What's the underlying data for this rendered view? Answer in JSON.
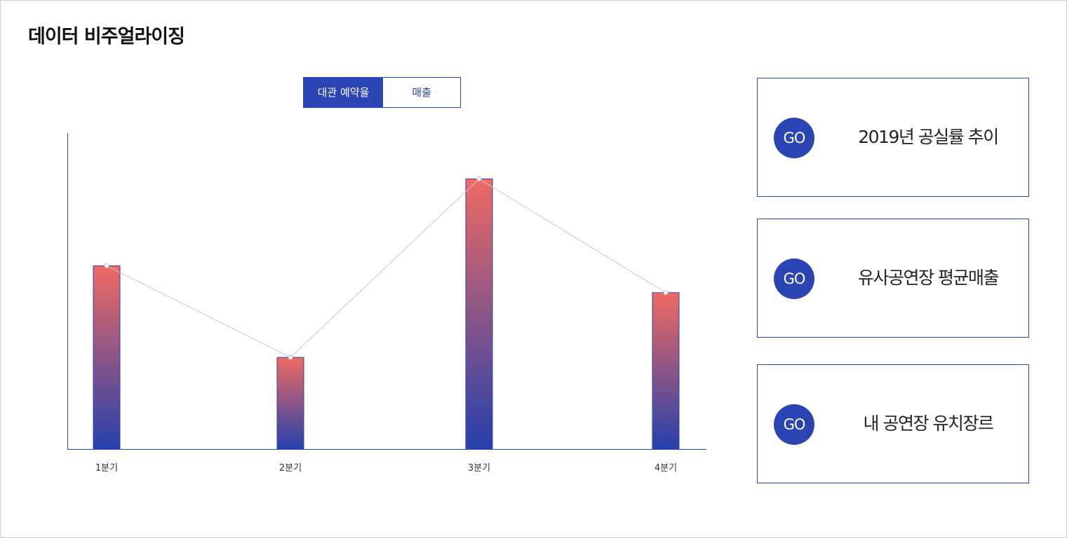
{
  "header": {
    "title": "데이터 비주얼라이징"
  },
  "tabs": [
    {
      "label": "대관 예약율",
      "active": true
    },
    {
      "label": "매출",
      "active": false
    }
  ],
  "chart_data": {
    "type": "bar",
    "categories": [
      "1분기",
      "2분기",
      "3분기",
      "4분기"
    ],
    "values": [
      58,
      29,
      85.5,
      49.5
    ],
    "ylim": [
      0,
      100
    ],
    "grid": false,
    "overlay_line": true,
    "colors": {
      "bar_top": "#f06a62",
      "bar_bottom": "#2540ac",
      "axis": "#2b44b4",
      "line": "#c8c8d4"
    }
  },
  "cards": [
    {
      "badge": "GO",
      "label": "2019년 공실률 추이"
    },
    {
      "badge": "GO",
      "label": "유사공연장 평균매출"
    },
    {
      "badge": "GO",
      "label": "내 공연장 유치장르"
    }
  ],
  "colors": {
    "accent": "#2b44b4"
  }
}
